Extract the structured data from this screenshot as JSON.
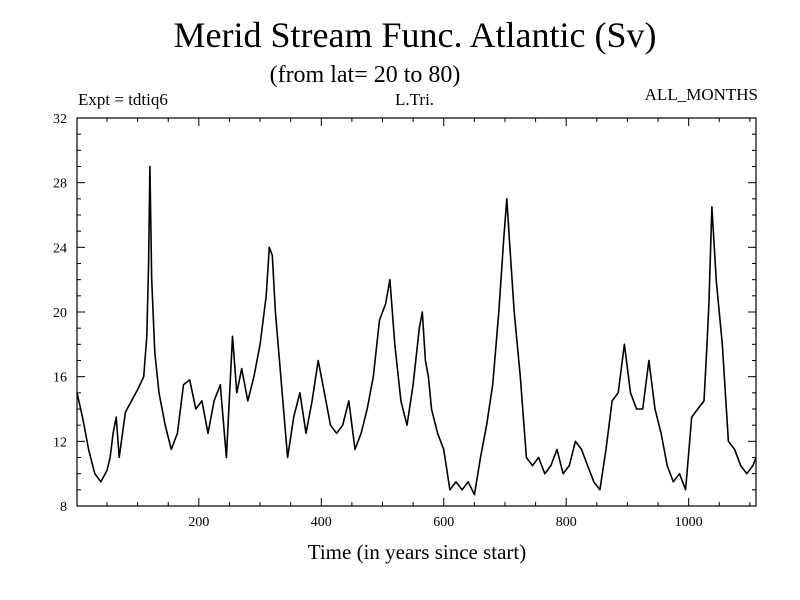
{
  "header": {
    "title": "Merid Stream Func. Atlantic (Sv)",
    "subtitle": "(from lat= 20 to 80)",
    "expt_label": "Expt = tdtiq6",
    "center_label": "L.Tri.",
    "right_label": "ALL_MONTHS"
  },
  "chart_data": {
    "type": "line",
    "title": "Merid Stream Func. Atlantic (Sv)",
    "subtitle": "(from lat= 20 to 80)",
    "xlabel": "Time (in years since start)",
    "ylabel": "",
    "xlim": [
      1,
      1110
    ],
    "ylim": [
      8,
      32
    ],
    "x_ticks": [
      200,
      400,
      600,
      800,
      1000
    ],
    "y_ticks": [
      8,
      12,
      16,
      20,
      24,
      28,
      32
    ],
    "grid": false,
    "line_color": "#000000",
    "series": [
      {
        "x": [
          1,
          10,
          20,
          30,
          40,
          50,
          55,
          60,
          65,
          70,
          80,
          90,
          100,
          110,
          115,
          118,
          120,
          123,
          128,
          135,
          145,
          155,
          165,
          175,
          185,
          195,
          205,
          215,
          225,
          235,
          245,
          255,
          262,
          270,
          280,
          290,
          300,
          310,
          315,
          320,
          325,
          335,
          345,
          355,
          365,
          375,
          385,
          395,
          405,
          415,
          425,
          435,
          445,
          455,
          465,
          475,
          485,
          495,
          505,
          512,
          520,
          530,
          540,
          550,
          560,
          565,
          570,
          575,
          580,
          590,
          600,
          610,
          620,
          630,
          640,
          650,
          660,
          670,
          680,
          690,
          698,
          703,
          708,
          715,
          725,
          735,
          745,
          755,
          765,
          775,
          785,
          795,
          805,
          815,
          825,
          835,
          845,
          855,
          865,
          875,
          885,
          895,
          905,
          915,
          925,
          935,
          945,
          955,
          965,
          975,
          985,
          995,
          1005,
          1015,
          1025,
          1030,
          1033,
          1038,
          1045,
          1055,
          1065,
          1075,
          1085,
          1095,
          1105,
          1110
        ],
        "values": [
          15.0,
          13.5,
          11.5,
          10.0,
          9.5,
          10.2,
          11.0,
          12.5,
          13.5,
          11.0,
          13.8,
          14.5,
          15.2,
          16.0,
          18.5,
          23.0,
          29.0,
          22.0,
          17.5,
          15.0,
          13.0,
          11.5,
          12.5,
          15.5,
          15.8,
          14.0,
          14.5,
          12.5,
          14.5,
          15.5,
          11.0,
          18.5,
          15.0,
          16.5,
          14.5,
          16.0,
          18.0,
          21.0,
          24.0,
          23.5,
          20.0,
          15.5,
          11.0,
          13.5,
          15.0,
          12.5,
          14.5,
          17.0,
          15.0,
          13.0,
          12.5,
          13.0,
          14.5,
          11.5,
          12.5,
          14.0,
          16.0,
          19.5,
          20.5,
          22.0,
          18.0,
          14.5,
          13.0,
          15.5,
          19.0,
          20.0,
          17.0,
          16.0,
          14.0,
          12.5,
          11.5,
          9.0,
          9.5,
          9.0,
          9.5,
          8.7,
          11.0,
          13.0,
          15.5,
          20.0,
          24.5,
          27.0,
          24.0,
          20.0,
          16.0,
          11.0,
          10.5,
          11.0,
          10.0,
          10.5,
          11.5,
          10.0,
          10.5,
          12.0,
          11.5,
          10.5,
          9.5,
          9.0,
          11.5,
          14.5,
          15.0,
          18.0,
          15.0,
          14.0,
          14.0,
          17.0,
          14.0,
          12.5,
          10.5,
          9.5,
          10.0,
          9.0,
          13.5,
          14.0,
          14.5,
          18.0,
          20.5,
          26.5,
          22.0,
          18.0,
          12.0,
          11.5,
          10.5,
          10.0,
          10.5,
          11.0
        ]
      }
    ]
  }
}
